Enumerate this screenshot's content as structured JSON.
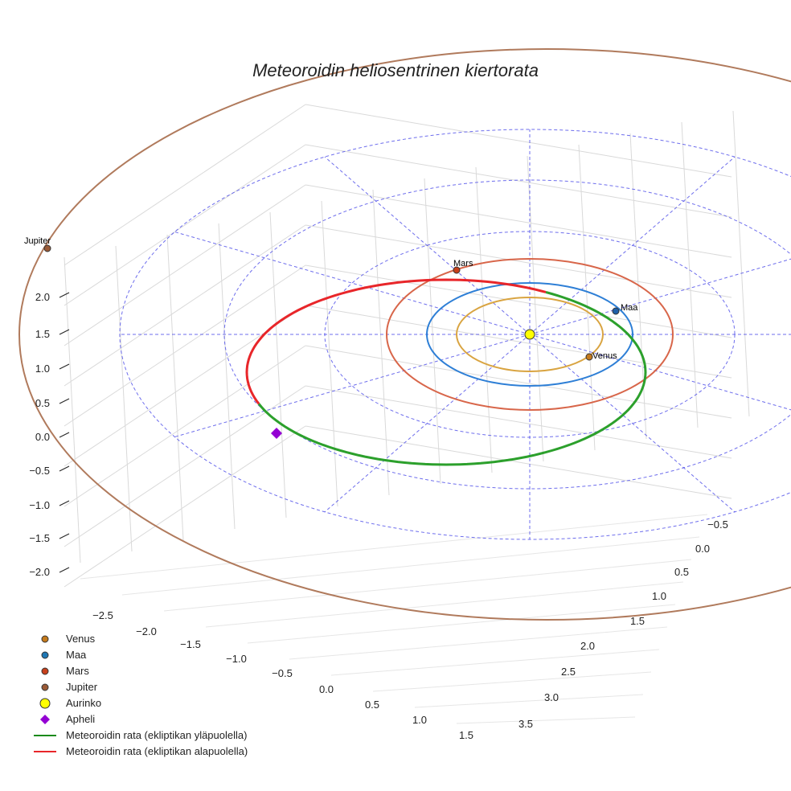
{
  "chart_data": {
    "type": "3d-orbit",
    "title": "Meteoroidin heliosentrinen kiertorata",
    "z_ticks": [
      "2.0",
      "1.5",
      "1.0",
      "0.5",
      "0.0",
      "−0.5",
      "−1.0",
      "−1.5",
      "−2.0"
    ],
    "x_ticks": [
      "−2.5",
      "−2.0",
      "−1.5",
      "−1.0",
      "−0.5",
      "0.0",
      "0.5",
      "1.0",
      "1.5"
    ],
    "y_ticks": [
      "−0.5",
      "0.0",
      "0.5",
      "1.0",
      "1.5",
      "2.0",
      "2.5",
      "3.0",
      "3.5"
    ],
    "planets": [
      {
        "name": "Venus",
        "label": "Venus",
        "color": "#c47a1c",
        "orbit_color": "#d9a441",
        "orbit_radius_au": 0.72
      },
      {
        "name": "Maa",
        "label": "Maa",
        "color": "#1f5fa8",
        "orbit_color": "#2e7fd6",
        "orbit_radius_au": 1.0
      },
      {
        "name": "Mars",
        "label": "Mars",
        "color": "#c8401c",
        "orbit_color": "#d8664a",
        "orbit_radius_au": 1.52
      },
      {
        "name": "Jupiter",
        "label": "Jupiter",
        "color": "#9a5a36",
        "orbit_color": "#b07a5c",
        "orbit_radius_au": 5.2
      }
    ],
    "sun": {
      "label": "Aurinko",
      "color": "#ffff00"
    },
    "aphelion": {
      "label": "Apheli",
      "color": "#9400d3"
    },
    "meteoroid_orbit": {
      "above_label": "Meteoroidin rata (ekliptikan yläpuolella)",
      "below_label": "Meteoroidin rata (ekliptikan alapuolella)",
      "above_color": "#2ca02c",
      "below_color": "#e8262a"
    },
    "legend": [
      {
        "label": "Venus",
        "marker": "circle",
        "color": "#c47a1c"
      },
      {
        "label": "Maa",
        "marker": "circle",
        "color": "#1f77b4"
      },
      {
        "label": "Mars",
        "marker": "circle",
        "color": "#c8401c"
      },
      {
        "label": "Jupiter",
        "marker": "circle",
        "color": "#9a5a36"
      },
      {
        "label": "Aurinko",
        "marker": "big-circle",
        "color": "#ffff00"
      },
      {
        "label": "Apheli",
        "marker": "diamond",
        "color": "#9400d3"
      },
      {
        "label": "Meteoroidin rata (ekliptikan yläpuolella)",
        "marker": "line",
        "color": "#1a8a1a"
      },
      {
        "label": "Meteoroidin rata (ekliptikan alapuolella)",
        "marker": "line",
        "color": "#e8262a"
      }
    ]
  }
}
